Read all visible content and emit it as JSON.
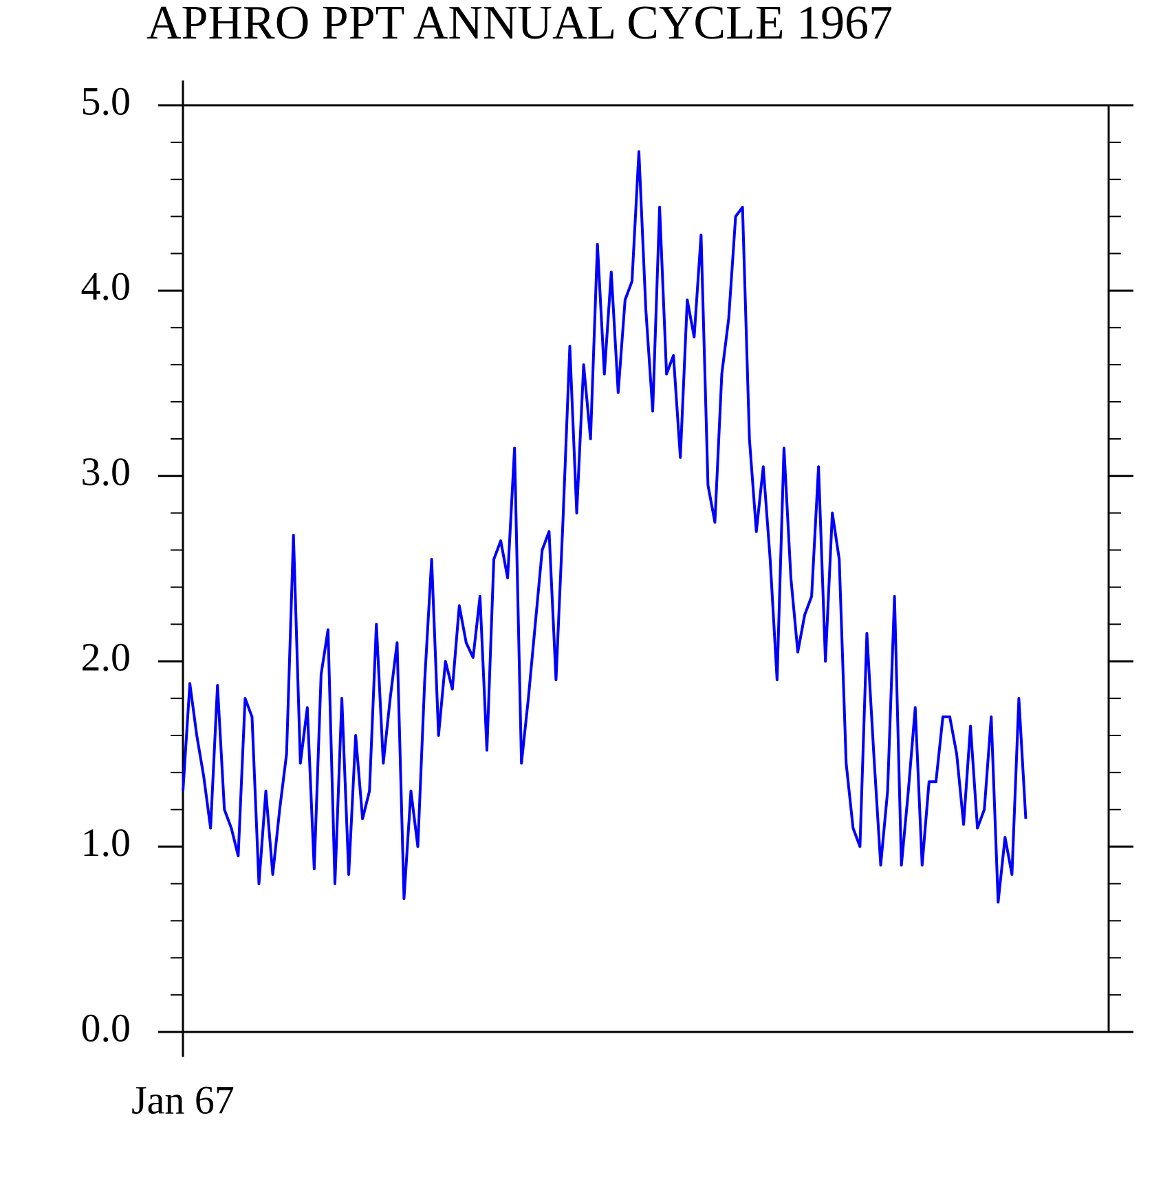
{
  "chart_data": {
    "type": "line",
    "title": "APHRO PPT ANNUAL CYCLE 1967",
    "x": [
      0,
      3,
      6,
      9,
      12,
      15,
      18,
      21,
      24,
      27,
      30,
      33,
      36,
      39,
      42,
      45,
      48,
      51,
      54,
      57,
      60,
      63,
      66,
      69,
      72,
      75,
      78,
      81,
      84,
      87,
      90,
      93,
      96,
      99,
      102,
      105,
      108,
      111,
      114,
      117,
      120,
      123,
      126,
      129,
      132,
      135,
      138,
      141,
      144,
      147,
      150,
      153,
      156,
      159,
      162,
      165,
      168,
      171,
      174,
      177,
      180,
      183,
      186,
      189,
      192,
      195,
      198,
      201,
      204,
      207,
      210,
      213,
      216,
      219,
      222,
      225,
      228,
      231,
      234,
      237,
      240,
      243,
      246,
      249,
      252,
      255,
      258,
      261,
      264,
      267,
      270,
      273,
      276,
      279,
      282,
      285,
      288,
      291,
      294,
      297,
      300,
      303,
      306,
      309,
      312,
      315,
      318,
      321,
      324,
      327,
      330,
      333,
      336,
      339,
      342,
      345,
      348,
      351,
      354,
      357,
      360,
      363,
      366
    ],
    "series": [
      {
        "color": "#0000ff",
        "values": [
          1.3,
          1.88,
          1.6,
          1.38,
          1.1,
          1.87,
          1.2,
          1.1,
          0.95,
          1.8,
          1.7,
          0.8,
          1.3,
          0.85,
          1.2,
          1.5,
          2.68,
          1.45,
          1.75,
          0.88,
          1.93,
          2.17,
          0.8,
          1.8,
          0.85,
          1.6,
          1.15,
          1.3,
          2.2,
          1.45,
          1.8,
          2.1,
          0.72,
          1.3,
          1.0,
          1.9,
          2.55,
          1.6,
          2.0,
          1.85,
          2.3,
          2.1,
          2.02,
          2.35,
          1.52,
          2.55,
          2.65,
          2.45,
          3.15,
          1.45,
          1.8,
          2.2,
          2.6,
          2.7,
          1.9,
          2.75,
          3.7,
          2.8,
          3.6,
          3.2,
          4.25,
          3.55,
          4.1,
          3.45,
          3.95,
          4.05,
          4.75,
          3.9,
          3.35,
          4.45,
          3.55,
          3.65,
          3.1,
          3.95,
          3.75,
          4.3,
          2.95,
          2.75,
          3.55,
          3.85,
          4.4,
          4.45,
          3.2,
          2.7,
          3.05,
          2.55,
          1.9,
          3.15,
          2.45,
          2.05,
          2.25,
          2.35,
          3.05,
          2.0,
          2.8,
          2.55,
          1.45,
          1.1,
          1.0,
          2.15,
          1.5,
          0.9,
          1.3,
          2.35,
          0.9,
          1.3,
          1.75,
          0.9,
          1.35,
          1.35,
          1.7,
          1.7,
          1.5,
          1.12,
          1.65,
          1.1,
          1.2,
          1.7,
          0.7,
          1.05,
          0.85,
          1.8,
          1.15
        ]
      }
    ],
    "xlim": [
      0,
      402
    ],
    "xticks": [
      {
        "value": 0,
        "label": "Jan 67"
      }
    ],
    "ylim": [
      0,
      5
    ],
    "yticks": [
      {
        "value": 0,
        "label": "0.0"
      },
      {
        "value": 1,
        "label": "1.0"
      },
      {
        "value": 2,
        "label": "2.0"
      },
      {
        "value": 3,
        "label": "3.0"
      },
      {
        "value": 4,
        "label": "4.0"
      },
      {
        "value": 5,
        "label": "5.0"
      }
    ],
    "yminorticks": [
      0.2,
      0.4,
      0.6,
      0.8,
      1.2,
      1.4,
      1.6,
      1.8,
      2.2,
      2.4,
      2.6,
      2.8,
      3.2,
      3.4,
      3.6,
      3.8,
      4.2,
      4.4,
      4.6,
      4.8
    ]
  }
}
